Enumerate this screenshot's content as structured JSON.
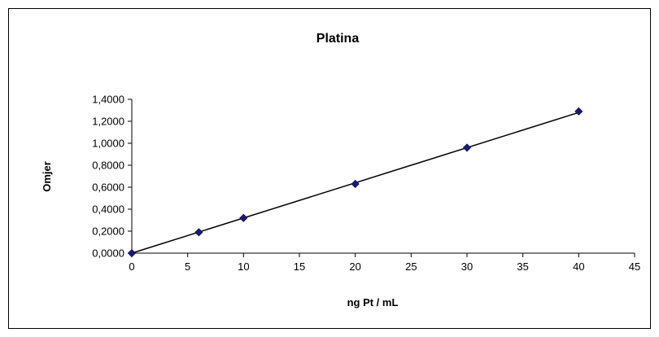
{
  "chart_data": {
    "type": "scatter",
    "title": "Platina",
    "xlabel": "ng Pt / mL",
    "ylabel": "Omjer",
    "xlim": [
      0,
      45
    ],
    "ylim": [
      0,
      1.4
    ],
    "x_ticks": [
      0,
      5,
      10,
      15,
      20,
      25,
      30,
      35,
      40,
      45
    ],
    "y_ticks": [
      0,
      0.2,
      0.4,
      0.6,
      0.8,
      1.0,
      1.2,
      1.4
    ],
    "x_tick_labels": [
      "0",
      "5",
      "10",
      "15",
      "20",
      "25",
      "30",
      "35",
      "40",
      "45"
    ],
    "y_tick_labels": [
      "0,0000",
      "0,2000",
      "0,4000",
      "0,6000",
      "0,8000",
      "1,0000",
      "1,2000",
      "1,4000"
    ],
    "grid": false,
    "legend": "none",
    "series": [
      {
        "x": [
          0,
          6,
          10,
          20,
          30,
          40
        ],
        "y": [
          0.0,
          0.19,
          0.32,
          0.63,
          0.96,
          1.29
        ],
        "marker": "diamond",
        "marker_color": "#1a1a7e"
      }
    ],
    "trendline": {
      "x": [
        0,
        40
      ],
      "y": [
        0.0,
        1.28
      ],
      "color": "#000000"
    }
  }
}
